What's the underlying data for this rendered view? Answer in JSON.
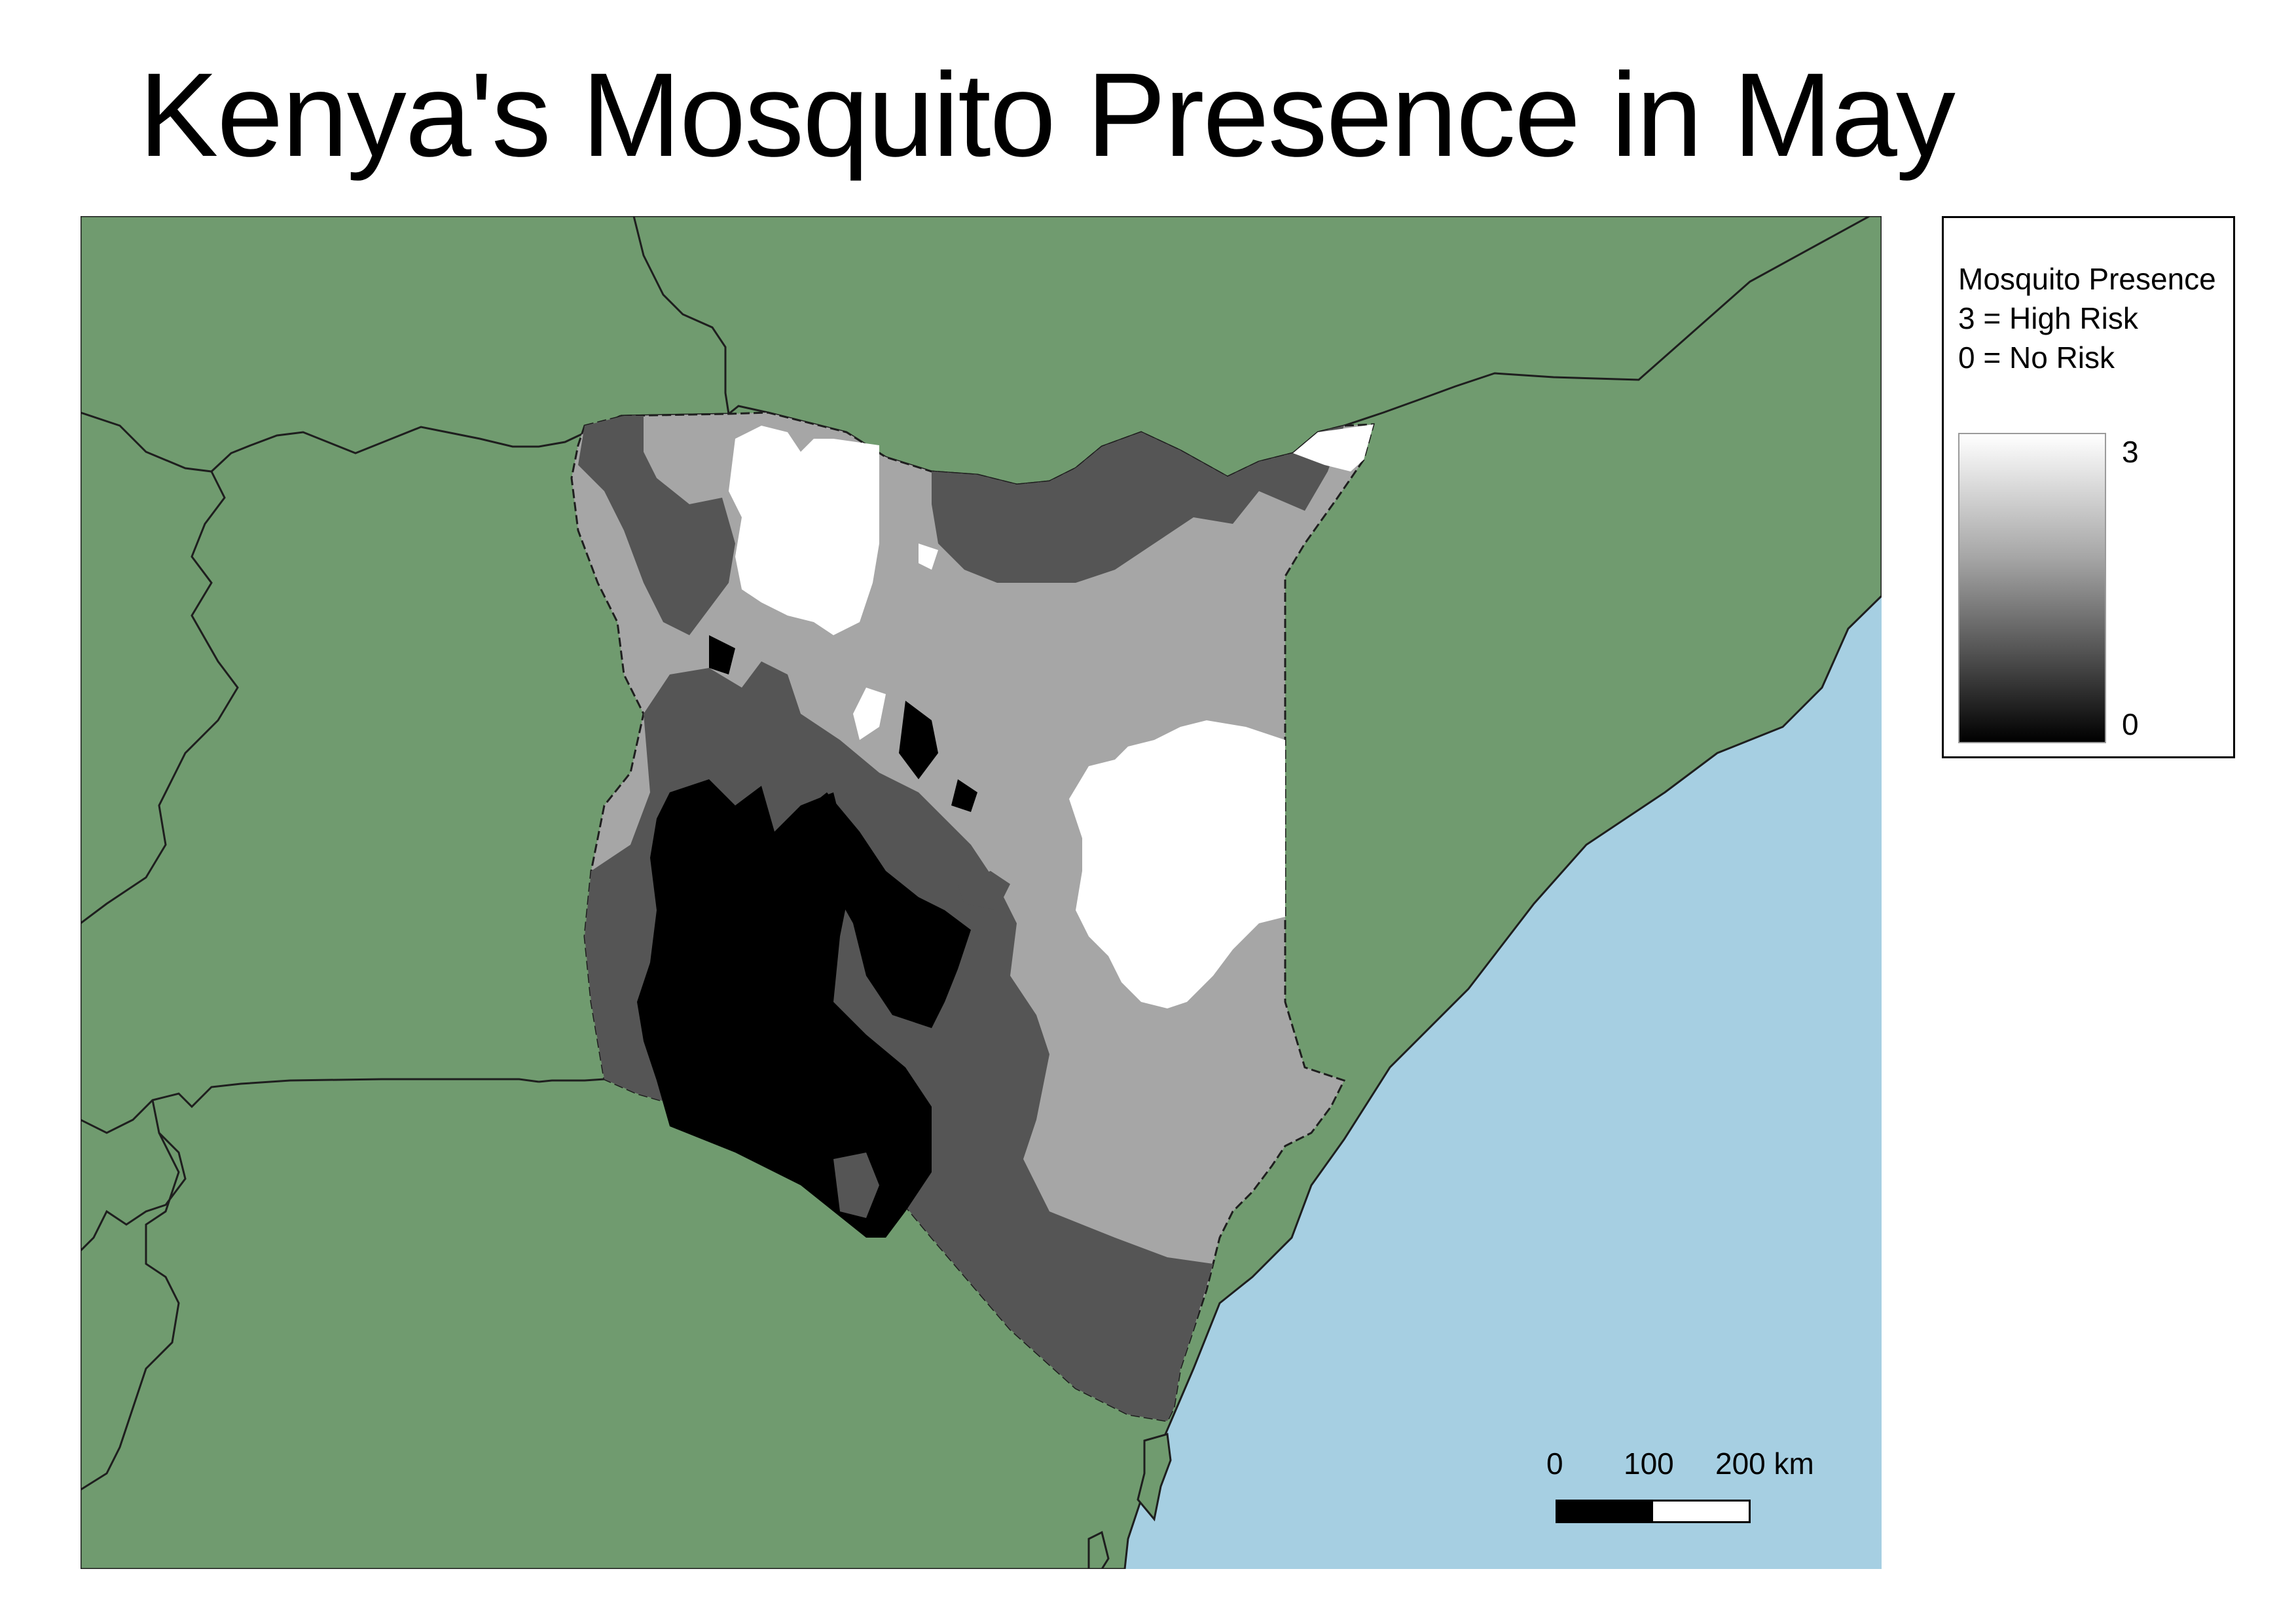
{
  "title": "Kenya's Mosquito Presence in May",
  "legend": {
    "heading": "Mosquito Presence",
    "line_high": "3 = High Risk",
    "line_none": "0 = No Risk",
    "ramp_max_label": "3",
    "ramp_min_label": "0",
    "ramp_max_value": 3,
    "ramp_min_value": 0
  },
  "scale_bar": {
    "labels": [
      "0",
      "100",
      "200 km"
    ],
    "segment_colors": [
      "#000000",
      "#ffffff"
    ]
  },
  "colors": {
    "land": "#709b6f",
    "sea": "#a6cfe2",
    "border": "#1e1e1e",
    "risk_0": "#000000",
    "risk_1": "#555555",
    "risk_2": "#a6a6a6",
    "risk_3": "#ffffff"
  }
}
